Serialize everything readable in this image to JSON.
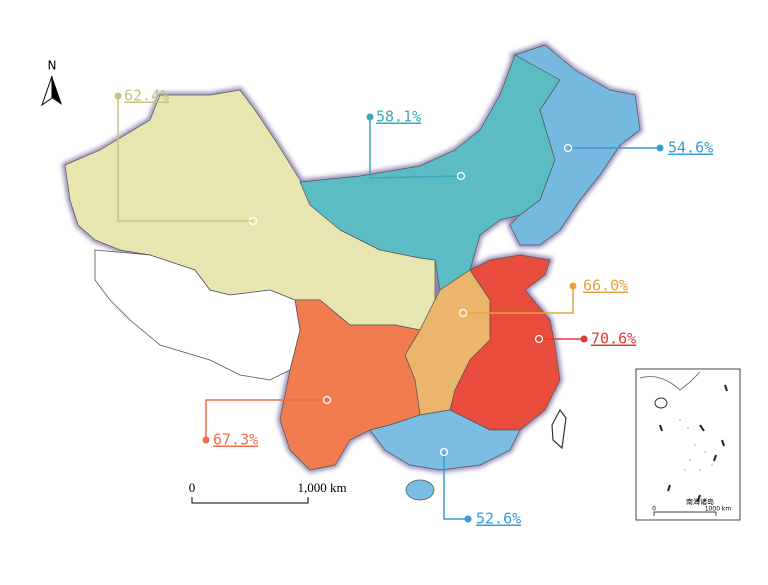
{
  "north_label": "N",
  "regions": [
    {
      "label": "62.4%",
      "color": "#c9c27a"
    },
    {
      "label": "58.1%",
      "color": "#3aa9bd"
    },
    {
      "label": "54.6%",
      "color": "#3a9bd5"
    },
    {
      "label": "66.0%",
      "color": "#e8a33d"
    },
    {
      "label": "70.6%",
      "color": "#e03a30"
    },
    {
      "label": "67.3%",
      "color": "#f06d48"
    },
    {
      "label": "52.6%",
      "color": "#3a9bd5"
    }
  ],
  "scale_bar": {
    "start": "0",
    "end": "1,000 km"
  },
  "inset": {
    "title": "南海诸岛",
    "start": "0",
    "end": "1000 km"
  }
}
